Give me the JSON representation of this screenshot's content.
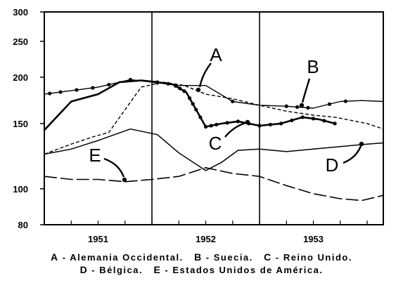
{
  "chart_data": {
    "type": "line",
    "title": "",
    "xlabel": "",
    "ylabel": "",
    "y_scale": "log",
    "ylim": [
      80,
      300
    ],
    "yticks": [
      80,
      100,
      150,
      200,
      250,
      300
    ],
    "xlim": [
      1950.5,
      1953.65
    ],
    "x_tick_labels": [
      {
        "x": 1951,
        "label": "1951"
      },
      {
        "x": 1952,
        "label": "1952"
      },
      {
        "x": 1953,
        "label": "1953"
      }
    ],
    "year_dividers": [
      1951.5,
      1952.5
    ],
    "grid": false,
    "legend": {
      "placement": "bottom",
      "line1": [
        {
          "key": "A",
          "label": "Alemania Occidental."
        },
        {
          "key": "B",
          "label": "Suecia."
        },
        {
          "key": "C",
          "label": "Reino Unido."
        }
      ],
      "line2": [
        {
          "key": "D",
          "label": "Bélgica."
        },
        {
          "key": "E",
          "label": "Estados Unidos de América."
        }
      ]
    },
    "series": [
      {
        "key": "A",
        "style": "dashed",
        "x": [
          1950.5,
          1950.75,
          1950.95,
          1951.1,
          1951.4,
          1951.6,
          1951.8,
          1952.0,
          1952.25,
          1952.5,
          1952.75,
          1953.0,
          1953.2,
          1953.5,
          1953.65
        ],
        "y": [
          124,
          132,
          138,
          142,
          188,
          194,
          190,
          180,
          175,
          168,
          162,
          158,
          156,
          150,
          145
        ]
      },
      {
        "key": "B",
        "style": "thin-solid-dotted",
        "x": [
          1950.5,
          1950.75,
          1951.0,
          1951.3,
          1951.5,
          1951.75,
          1952.0,
          1952.25,
          1952.5,
          1952.75,
          1953.0,
          1953.25,
          1953.45,
          1953.65
        ],
        "y": [
          180,
          184,
          188,
          197,
          194,
          190,
          190,
          172,
          168,
          167,
          165,
          172,
          173,
          172
        ],
        "marker_x": [
          1950.55,
          1950.65,
          1950.8,
          1950.95,
          1951.1,
          1951.3,
          1951.55,
          1952.25,
          1952.75,
          1952.85,
          1952.95,
          1953.15,
          1953.3
        ]
      },
      {
        "key": "C",
        "style": "thick-solid-dotted",
        "x": [
          1950.5,
          1950.75,
          1951.0,
          1951.2,
          1951.4,
          1951.55,
          1951.7,
          1951.82,
          1952.0,
          1952.15,
          1952.3,
          1952.5,
          1952.7,
          1952.9,
          1953.05,
          1953.2
        ],
        "y": [
          144,
          172,
          180,
          194,
          196,
          194,
          191,
          182,
          147,
          150,
          152,
          148,
          150,
          156,
          154,
          150
        ],
        "marker_x": [
          1951.55,
          1951.65,
          1951.72,
          1951.76,
          1951.8,
          1951.85,
          1951.88,
          1951.91,
          1951.95,
          1952.0,
          1952.05,
          1952.1,
          1952.2,
          1952.3,
          1952.4,
          1952.5,
          1952.6,
          1952.7,
          1952.8,
          1952.9,
          1953.0,
          1953.1,
          1953.2
        ]
      },
      {
        "key": "D",
        "style": "solid",
        "x": [
          1950.5,
          1950.75,
          1951.0,
          1951.3,
          1951.55,
          1951.75,
          1952.0,
          1952.15,
          1952.3,
          1952.5,
          1952.75,
          1953.0,
          1953.25,
          1953.5,
          1953.65
        ],
        "y": [
          124,
          128,
          135,
          145,
          140,
          125,
          112,
          118,
          127,
          128,
          126,
          128,
          130,
          132,
          133
        ],
        "marker_x": []
      },
      {
        "key": "E",
        "style": "long-dashed",
        "x": [
          1950.5,
          1950.75,
          1951.0,
          1951.25,
          1951.5,
          1951.75,
          1952.0,
          1952.25,
          1952.5,
          1952.75,
          1953.0,
          1953.25,
          1953.45,
          1953.65
        ],
        "y": [
          108,
          106,
          106,
          104.5,
          106,
          108,
          114,
          110,
          108,
          102,
          97,
          94,
          93,
          96
        ],
        "marker_x": []
      }
    ],
    "annotations": [
      {
        "text": "A",
        "series": "A"
      },
      {
        "text": "B",
        "series": "B"
      },
      {
        "text": "C",
        "series": "C"
      },
      {
        "text": "D",
        "series": "D"
      },
      {
        "text": "E",
        "series": "E"
      }
    ]
  }
}
